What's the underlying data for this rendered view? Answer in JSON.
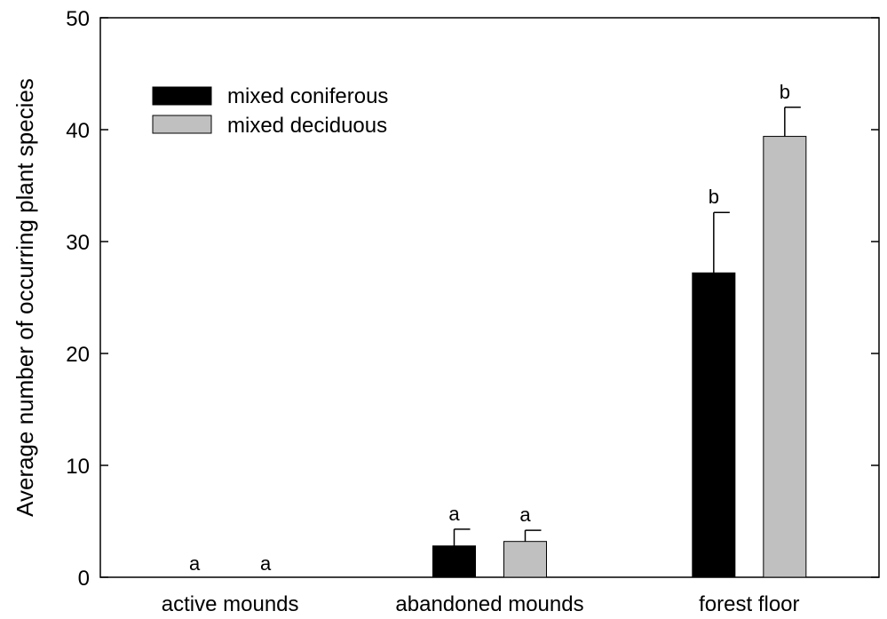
{
  "chart_data": {
    "type": "bar",
    "title": "",
    "xlabel": "",
    "ylabel": "Average number of occurring plant species",
    "ylim": [
      0,
      50
    ],
    "yticks": [
      0,
      10,
      20,
      30,
      40,
      50
    ],
    "categories": [
      "active mounds",
      "abandoned mounds",
      "forest floor"
    ],
    "series": [
      {
        "name": "mixed coniferous",
        "color": "#000000",
        "values": [
          0,
          2.8,
          27.2
        ],
        "errors": [
          0,
          1.5,
          5.4
        ],
        "significance": [
          "a",
          "a",
          "b"
        ]
      },
      {
        "name": "mixed deciduous",
        "color": "#c0c0c0",
        "values": [
          0,
          3.2,
          39.4
        ],
        "errors": [
          0,
          1.0,
          2.6
        ],
        "significance": [
          "a",
          "a",
          "b"
        ]
      }
    ],
    "legend_position": "top-left",
    "grid": false
  }
}
